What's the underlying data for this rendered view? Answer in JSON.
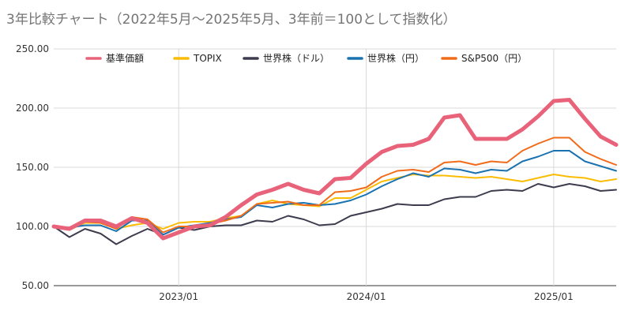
{
  "chart_data": {
    "type": "line",
    "title": "3年比較チャート（2022年5月〜2025年5月、3年前＝100として指数化）",
    "xlabel": "",
    "ylabel": "",
    "ylim": [
      50,
      250
    ],
    "y_ticks": [
      50,
      100,
      150,
      200,
      250
    ],
    "y_tick_labels": [
      "50.00",
      "100.00",
      "150.00",
      "200.00",
      "250.00"
    ],
    "x_tick_labels": [
      "2023/01",
      "2024/01",
      "2025/01"
    ],
    "x": [
      "2022/05",
      "2022/06",
      "2022/07",
      "2022/08",
      "2022/09",
      "2022/10",
      "2022/11",
      "2022/12",
      "2023/01",
      "2023/02",
      "2023/03",
      "2023/04",
      "2023/05",
      "2023/06",
      "2023/07",
      "2023/08",
      "2023/09",
      "2023/10",
      "2023/11",
      "2023/12",
      "2024/01",
      "2024/02",
      "2024/03",
      "2024/04",
      "2024/05",
      "2024/06",
      "2024/07",
      "2024/08",
      "2024/09",
      "2024/10",
      "2024/11",
      "2024/12",
      "2025/01",
      "2025/02",
      "2025/03",
      "2025/04",
      "2025/05"
    ],
    "grid": true,
    "legend_position": "top",
    "series": [
      {
        "name": "基準価額",
        "color": "#e8637a",
        "values": [
          100,
          98,
          105,
          105,
          100,
          107,
          103,
          90,
          95,
          100,
          101,
          108,
          118,
          127,
          131,
          136,
          131,
          128,
          140,
          141,
          153,
          163,
          168,
          169,
          174,
          192,
          194,
          174,
          174,
          174,
          182,
          193,
          206,
          207,
          191,
          176,
          169
        ]
      },
      {
        "name": "TOPIX",
        "color": "#fbbc04",
        "values": [
          100,
          97,
          103,
          103,
          98,
          101,
          103,
          98,
          103,
          104,
          104,
          107,
          109,
          119,
          122,
          119,
          118,
          117,
          124,
          124,
          131,
          138,
          141,
          144,
          143,
          143,
          142,
          141,
          142,
          140,
          138,
          141,
          144,
          142,
          141,
          138,
          140
        ]
      },
      {
        "name": "世界株（ドル）",
        "color": "#3c3c4e",
        "values": [
          100,
          91,
          98,
          94,
          85,
          92,
          98,
          93,
          99,
          97,
          100,
          101,
          101,
          105,
          104,
          109,
          106,
          101,
          102,
          109,
          112,
          115,
          119,
          118,
          118,
          123,
          125,
          125,
          130,
          131,
          130,
          136,
          133,
          136,
          134,
          130,
          131
        ]
      },
      {
        "name": "世界株（円）",
        "color": "#1a73b0",
        "values": [
          100,
          99,
          101,
          101,
          96,
          105,
          105,
          93,
          99,
          101,
          103,
          106,
          108,
          118,
          116,
          119,
          120,
          118,
          119,
          122,
          127,
          134,
          140,
          145,
          142,
          149,
          148,
          145,
          148,
          147,
          155,
          159,
          164,
          164,
          155,
          151,
          147
        ]
      },
      {
        "name": "S&P500（円）",
        "color": "#f06b1a",
        "values": [
          100,
          99,
          104,
          103,
          98,
          108,
          106,
          95,
          100,
          100,
          102,
          105,
          109,
          119,
          120,
          121,
          118,
          118,
          129,
          130,
          133,
          142,
          147,
          148,
          146,
          154,
          155,
          152,
          155,
          154,
          164,
          170,
          175,
          175,
          163,
          157,
          152
        ]
      }
    ]
  }
}
